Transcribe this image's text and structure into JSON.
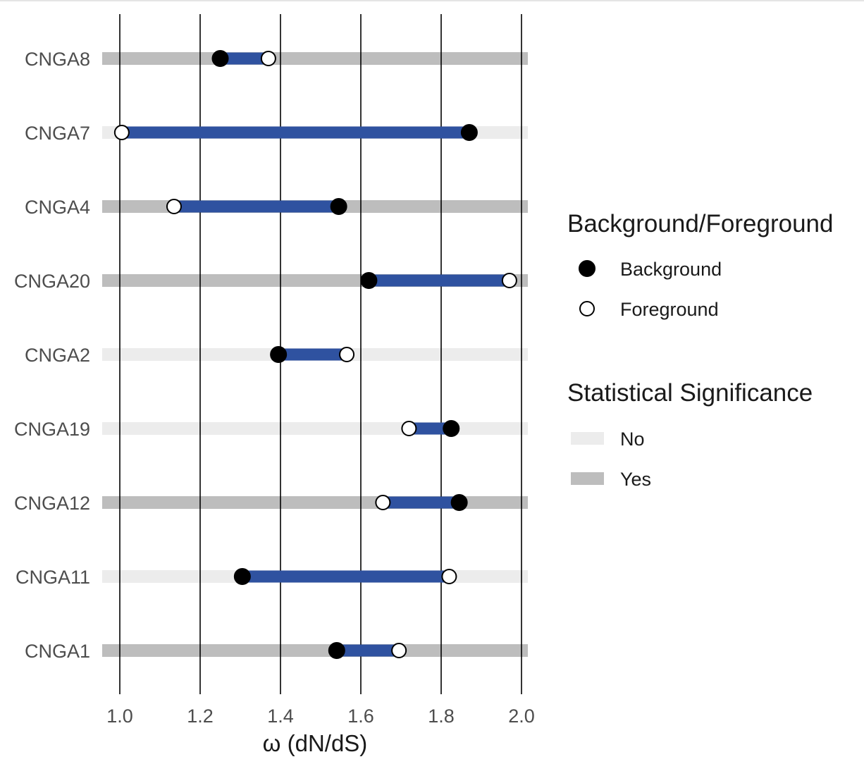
{
  "chart_data": {
    "type": "dumbbell",
    "xlabel": "ω (dN/dS)",
    "xlim": [
      0.96,
      2.02
    ],
    "x_ticks": [
      1.0,
      1.2,
      1.4,
      1.6,
      1.8,
      2.0
    ],
    "x_tick_labels": [
      "1.0",
      "1.2",
      "1.4",
      "1.6",
      "1.8",
      "2.0"
    ],
    "grid": "vertical major gridlines",
    "categories": [
      "CNGA8",
      "CNGA7",
      "CNGA4",
      "CNGA20",
      "CNGA2",
      "CNGA19",
      "CNGA12",
      "CNGA11",
      "CNGA1"
    ],
    "series": [
      {
        "name": "Background",
        "values": [
          1.25,
          1.87,
          1.545,
          1.62,
          1.395,
          1.825,
          1.845,
          1.305,
          1.54
        ]
      },
      {
        "name": "Foreground",
        "values": [
          1.37,
          1.005,
          1.135,
          1.97,
          1.565,
          1.72,
          1.655,
          1.82,
          1.695
        ]
      }
    ],
    "significance": [
      "Yes",
      "No",
      "Yes",
      "Yes",
      "No",
      "No",
      "Yes",
      "No",
      "Yes"
    ],
    "legend": {
      "placement": "right",
      "point_title": "Background/Foreground",
      "point_items": [
        "Background",
        "Foreground"
      ],
      "sig_title": "Statistical Significance",
      "sig_items": [
        "No",
        "Yes"
      ]
    },
    "colors": {
      "segment": "#2f52a0",
      "sig_no": "#ececec",
      "sig_yes": "#bdbdbd",
      "background_point": "#000000",
      "foreground_point": "#ffffff",
      "gridline": "#000000"
    }
  }
}
